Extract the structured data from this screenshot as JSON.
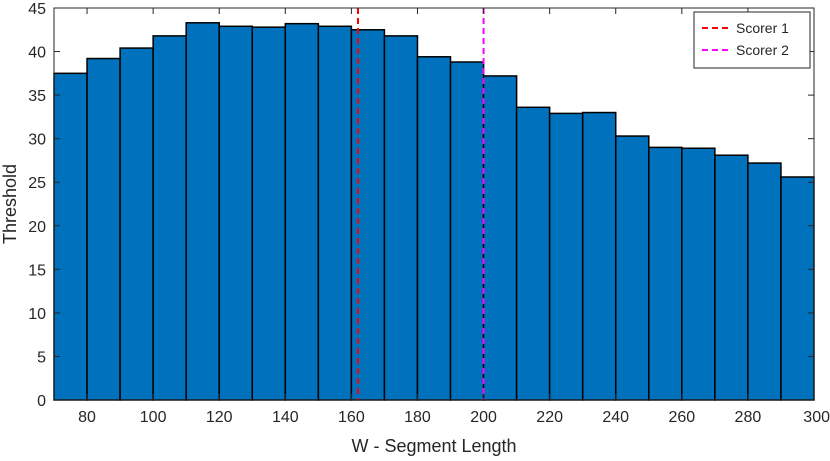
{
  "chart_data": {
    "type": "bar",
    "xlabel": "W - Segment Length",
    "ylabel": "Threshold",
    "xlim": [
      70,
      300
    ],
    "ylim": [
      0,
      45
    ],
    "bin_width": 10,
    "xticks": [
      80,
      100,
      120,
      140,
      160,
      180,
      200,
      220,
      240,
      260,
      280,
      300
    ],
    "yticks": [
      0,
      5,
      10,
      15,
      20,
      25,
      30,
      35,
      40,
      45
    ],
    "bar_color": "#0072BD",
    "x": [
      75,
      85,
      95,
      105,
      115,
      125,
      135,
      145,
      155,
      165,
      175,
      185,
      195,
      205,
      215,
      225,
      235,
      245,
      255,
      265,
      275,
      285,
      295
    ],
    "values": [
      37.5,
      39.2,
      40.4,
      41.8,
      43.3,
      42.9,
      42.8,
      43.2,
      42.9,
      42.5,
      41.8,
      39.4,
      38.8,
      37.2,
      33.6,
      32.9,
      33.0,
      30.3,
      29.0,
      28.9,
      28.1,
      27.2,
      25.6
    ],
    "vlines": [
      {
        "name": "Scorer 1",
        "x": 162,
        "color": "#FF0000",
        "style": "dashed"
      },
      {
        "name": "Scorer 2",
        "x": 200,
        "color": "#FF00FF",
        "style": "dashed"
      }
    ],
    "legend_position": "top-right",
    "grid": false
  }
}
